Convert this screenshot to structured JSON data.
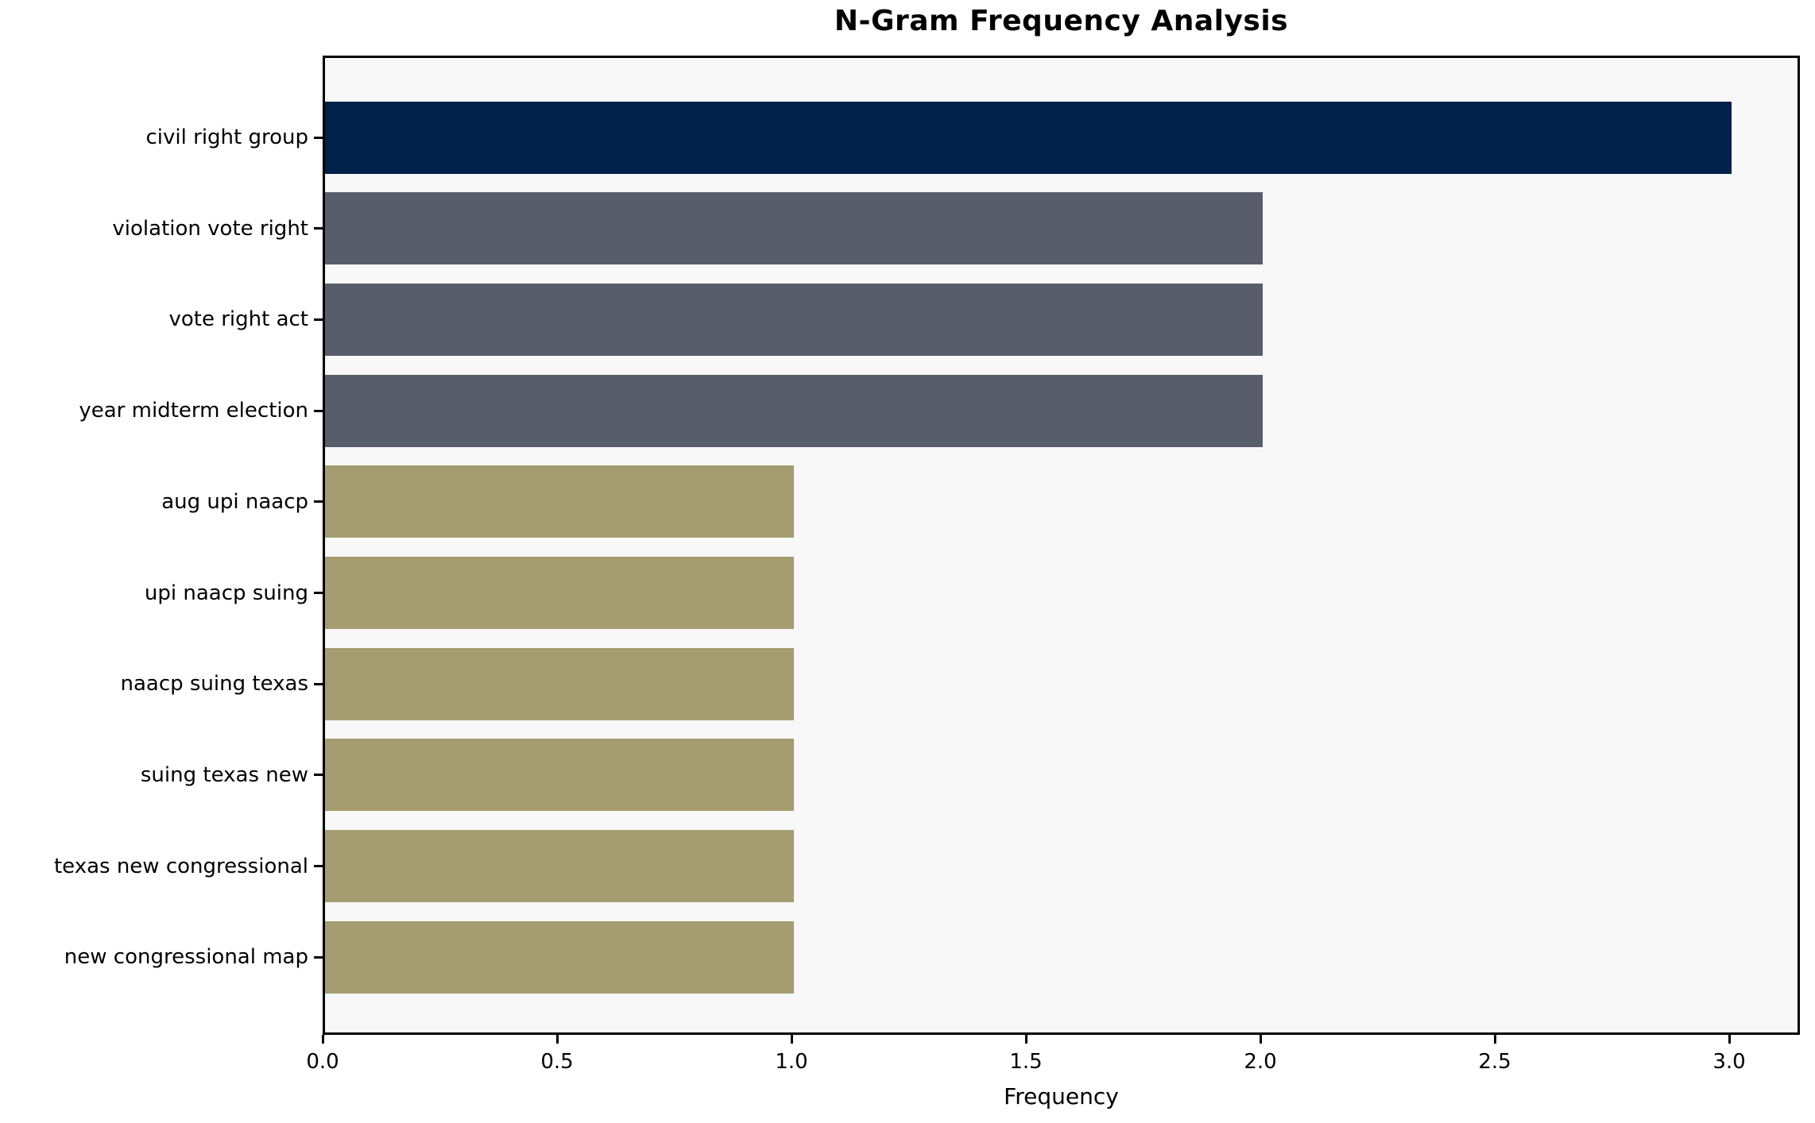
{
  "chart_data": {
    "type": "bar",
    "orientation": "horizontal",
    "title": "N-Gram Frequency Analysis",
    "xlabel": "Frequency",
    "ylabel": "",
    "categories": [
      "civil right group",
      "violation vote right",
      "vote right act",
      "year midterm election",
      "aug upi naacp",
      "upi naacp suing",
      "naacp suing texas",
      "suing texas new",
      "texas new congressional",
      "new congressional map"
    ],
    "values": [
      3,
      2,
      2,
      2,
      1,
      1,
      1,
      1,
      1,
      1
    ],
    "bar_colors": [
      "#01214B",
      "#575D6B",
      "#575D6B",
      "#575D6B",
      "#A69C71",
      "#A69C71",
      "#A69C71",
      "#A69C71",
      "#A69C71",
      "#A69C71"
    ],
    "xticks": [
      0.0,
      0.5,
      1.0,
      1.5,
      2.0,
      2.5,
      3.0
    ],
    "xtick_labels": [
      "0.0",
      "0.5",
      "1.0",
      "1.5",
      "2.0",
      "2.5",
      "3.0"
    ],
    "xlim": [
      0,
      3.15
    ],
    "grid": false,
    "legend": "none",
    "plot_background": "#F8F8F8",
    "figure_background": "#FFFFFF",
    "color_meaning": {
      "high_frequency": "#01214B",
      "mid_frequency": "#575D6B",
      "low_frequency": "#A69C71"
    }
  }
}
